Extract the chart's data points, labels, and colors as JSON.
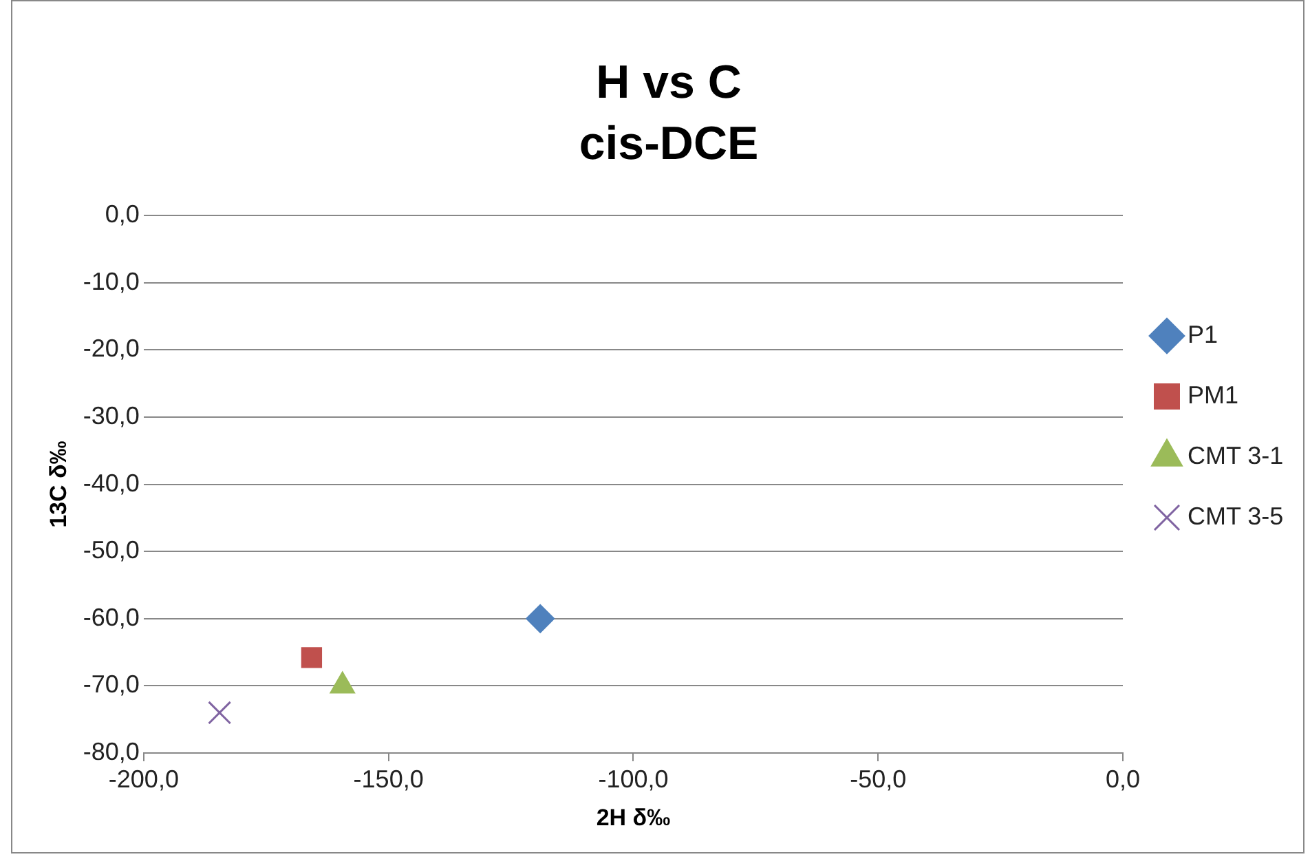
{
  "chart_data": {
    "type": "scatter",
    "title": "H vs C",
    "subtitle": "cis-DCE",
    "xlabel": "2H δ‰",
    "ylabel": "13C δ‰",
    "series": [
      {
        "name": "P1",
        "color": "#4f81bd",
        "marker": "diamond",
        "x": [
          -119
        ],
        "values": [
          -60
        ]
      },
      {
        "name": "PM1",
        "color": "#c0504d",
        "marker": "square",
        "x": [
          -165.7
        ],
        "values": [
          -65.8
        ]
      },
      {
        "name": "CMT 3-1",
        "color": "#9bbb59",
        "marker": "triangle",
        "x": [
          -159.4
        ],
        "values": [
          -70
        ]
      },
      {
        "name": "CMT 3-5",
        "color": "#8064a2",
        "marker": "cross",
        "x": [
          -184.5
        ],
        "values": [
          -74
        ]
      }
    ],
    "xlim": [
      -200,
      0
    ],
    "xticks": [
      {
        "value": -200,
        "label": "-200,0"
      },
      {
        "value": -150,
        "label": "-150,0"
      },
      {
        "value": -100,
        "label": "-100,0"
      },
      {
        "value": -50,
        "label": "-50,0"
      },
      {
        "value": 0,
        "label": "0,0"
      }
    ],
    "ylim": [
      -80,
      0
    ],
    "yticks": [
      {
        "value": -80,
        "label": "-80,0"
      },
      {
        "value": -70,
        "label": "-70,0"
      },
      {
        "value": -60,
        "label": "-60,0"
      },
      {
        "value": -50,
        "label": "-50,0"
      },
      {
        "value": -40,
        "label": "-40,0"
      },
      {
        "value": -30,
        "label": "-30,0"
      },
      {
        "value": -20,
        "label": "-20,0"
      },
      {
        "value": -10,
        "label": "-10,0"
      },
      {
        "value": 0,
        "label": "0,0"
      }
    ],
    "grid": "y",
    "legend": "right"
  }
}
